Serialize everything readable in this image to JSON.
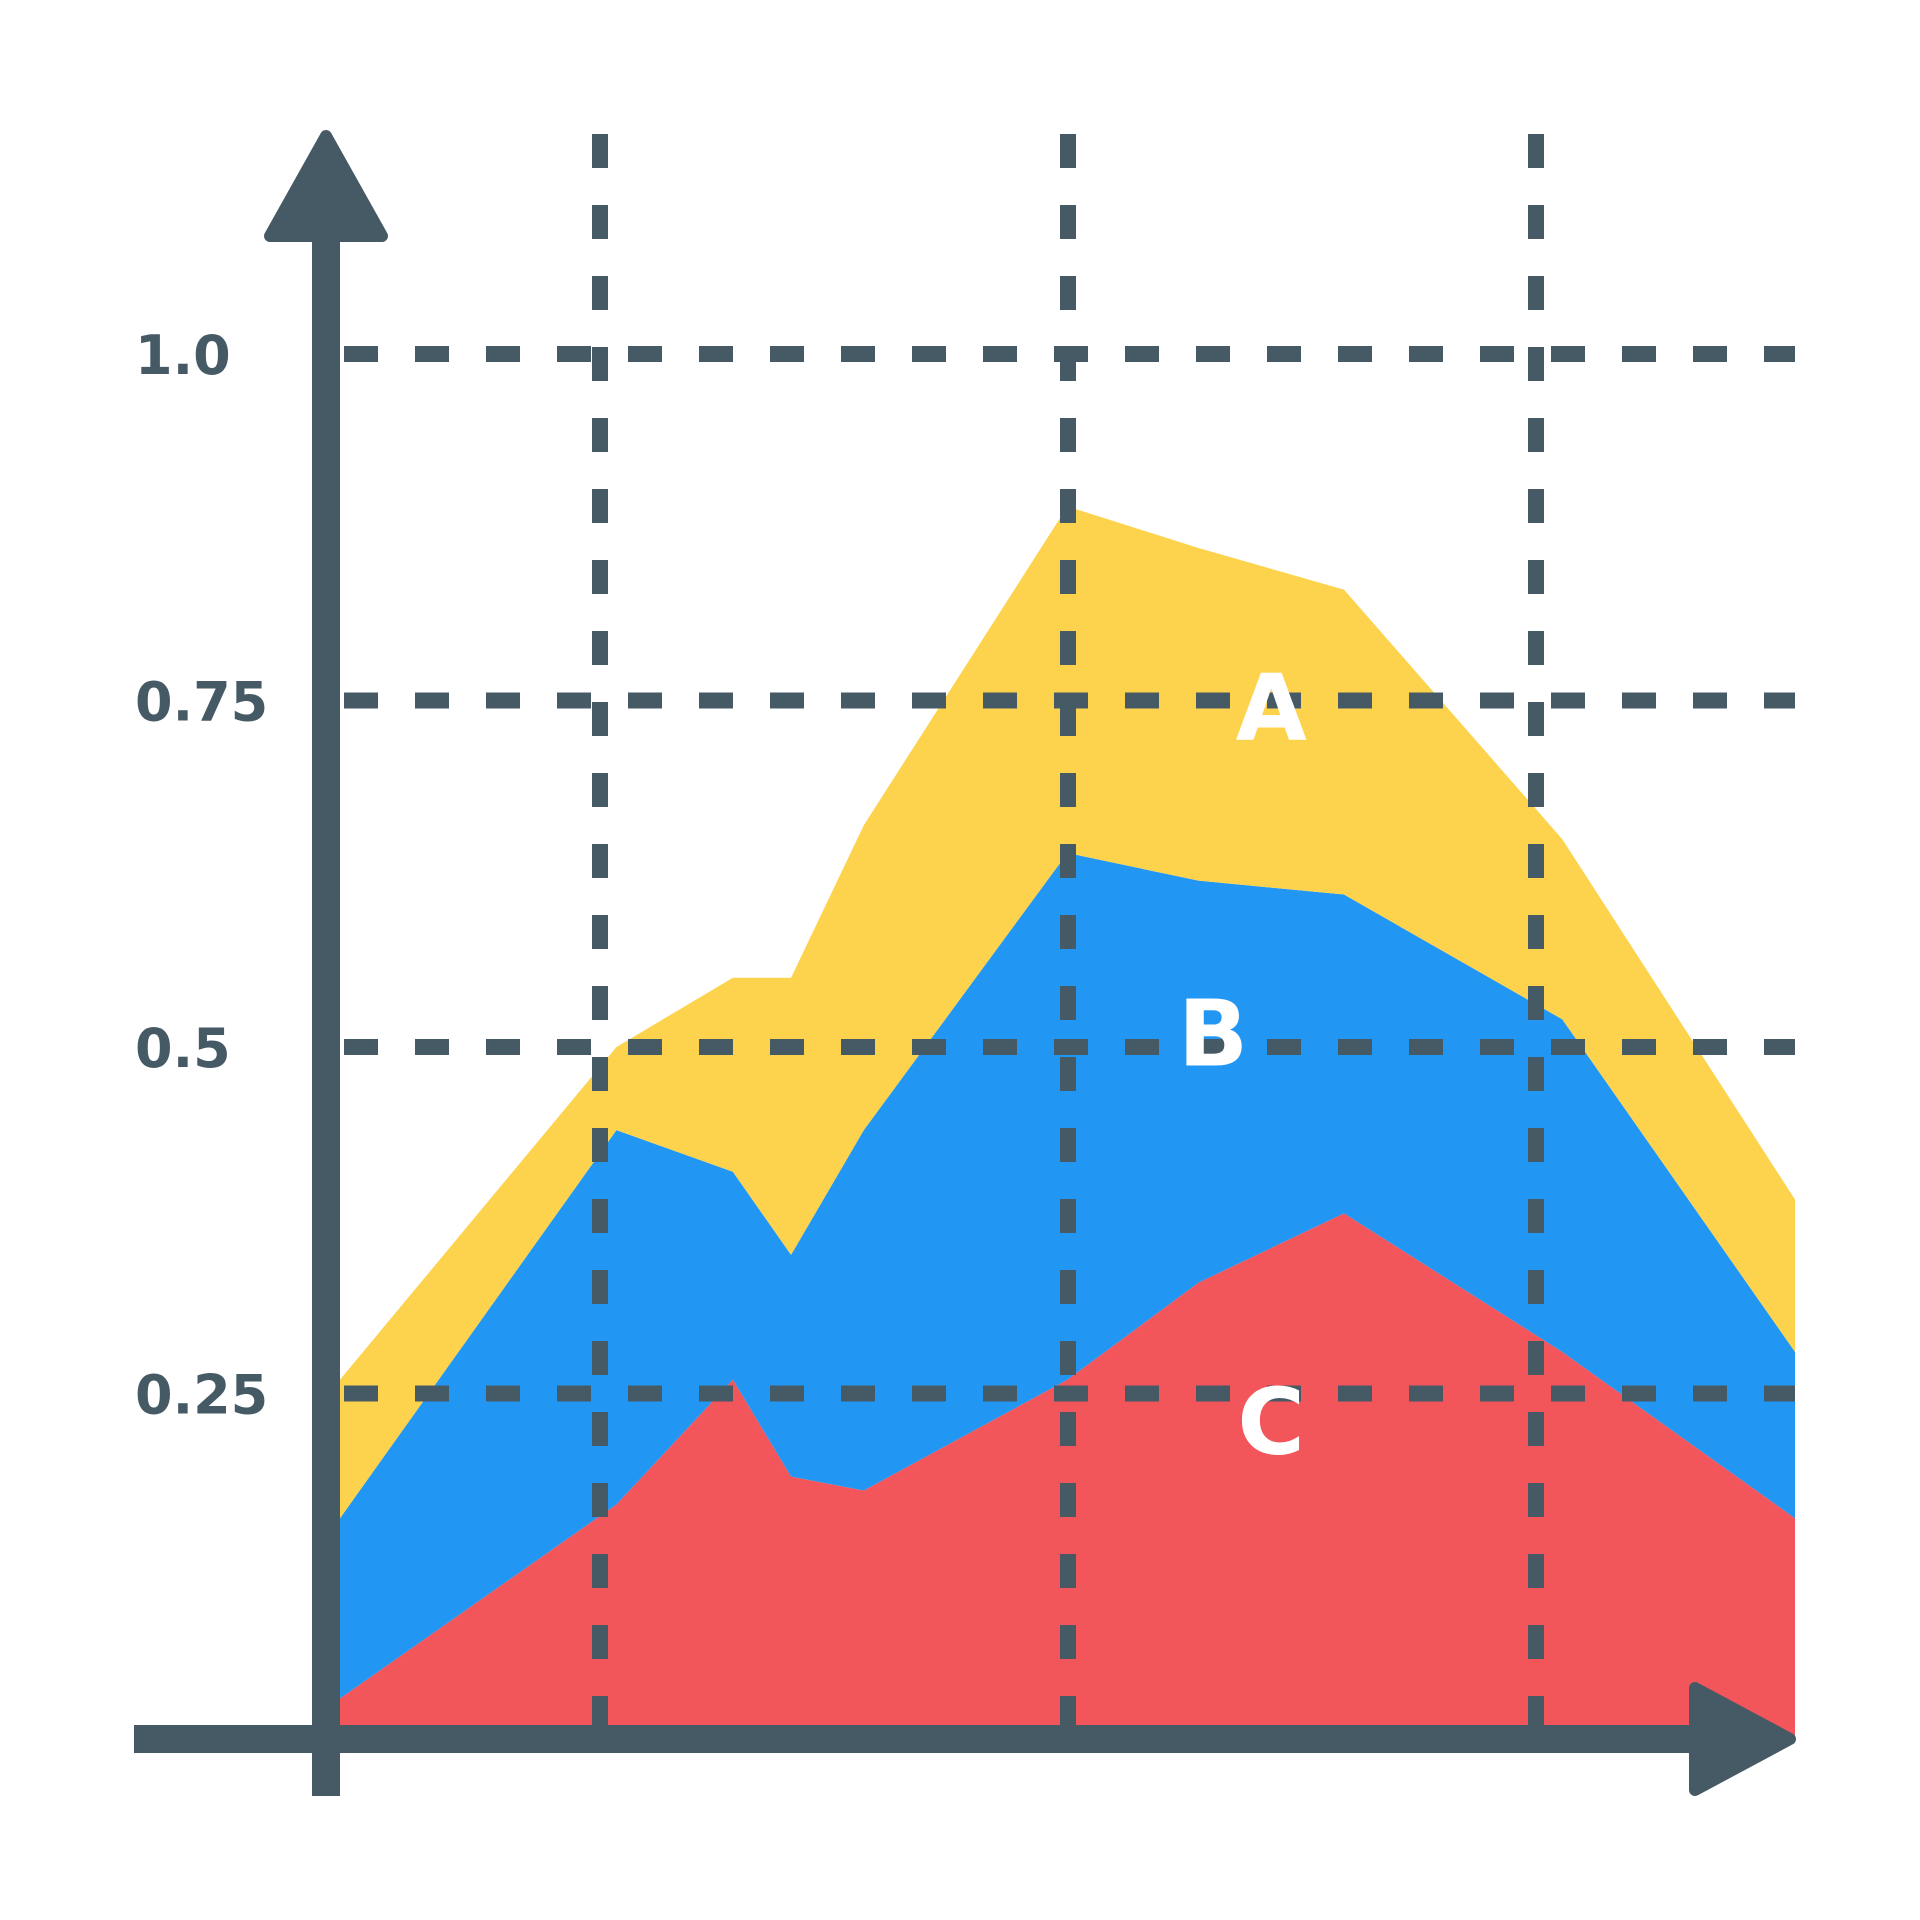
{
  "chart_data": {
    "type": "area",
    "stacked": true,
    "title": "",
    "xlabel": "",
    "ylabel": "",
    "ylim": [
      0,
      1.0
    ],
    "grid": true,
    "yticks": [
      {
        "value": 0.25,
        "label": "0.25"
      },
      {
        "value": 0.5,
        "label": "0.5"
      },
      {
        "value": 0.75,
        "label": "0.75"
      },
      {
        "value": 1.0,
        "label": "1.0"
      }
    ],
    "x": [
      0,
      0.19,
      0.27,
      0.31,
      0.36,
      0.5,
      0.59,
      0.69,
      0.84,
      1.0
    ],
    "series": [
      {
        "name": "C",
        "color": "#f2565a",
        "values": [
          0.03,
          0.17,
          0.26,
          0.19,
          0.18,
          0.26,
          0.33,
          0.38,
          0.28,
          0.16
        ]
      },
      {
        "name": "B",
        "color": "#2196f3",
        "values": [
          0.13,
          0.27,
          0.15,
          0.16,
          0.26,
          0.38,
          0.29,
          0.23,
          0.24,
          0.12
        ]
      },
      {
        "name": "A",
        "color": "#fdd34e",
        "values": [
          0.1,
          0.06,
          0.14,
          0.2,
          0.22,
          0.25,
          0.24,
          0.22,
          0.13,
          0.11
        ]
      }
    ],
    "label_positions": [
      {
        "name": "A",
        "x": 0.64,
        "y": 0.74
      },
      {
        "name": "B",
        "x": 0.6,
        "y": 0.505
      },
      {
        "name": "C",
        "x": 0.64,
        "y": 0.225
      }
    ],
    "colors": {
      "axis": "#465a66",
      "grid": "#465a66"
    }
  }
}
